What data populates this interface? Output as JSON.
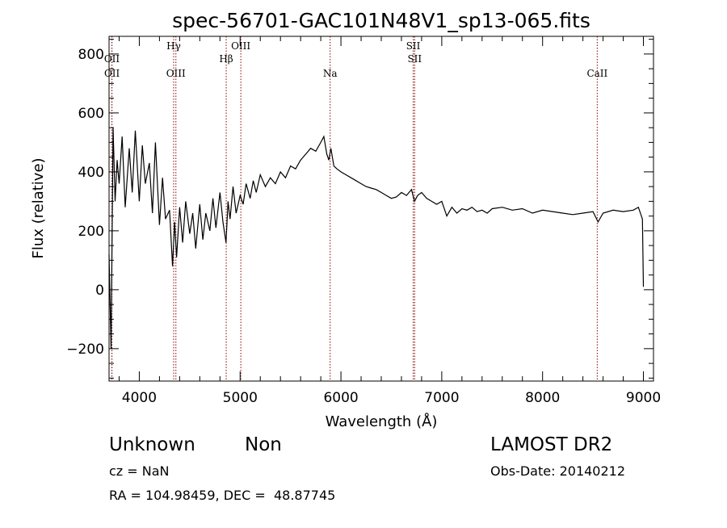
{
  "chart_data": {
    "type": "line",
    "title": "spec-56701-GAC101N48V1_sp13-065.fits",
    "xlabel": "Wavelength (Å)",
    "ylabel": "Flux (relative)",
    "xlim": [
      3700,
      9100
    ],
    "ylim": [
      -310,
      860
    ],
    "xticks": [
      4000,
      5000,
      6000,
      7000,
      8000,
      9000
    ],
    "yticks": [
      -200,
      0,
      200,
      400,
      600,
      800
    ],
    "grid": false,
    "legend": "none",
    "series": [
      {
        "x": [
          3700,
          3720,
          3740,
          3760,
          3780,
          3800,
          3830,
          3860,
          3900,
          3930,
          3960,
          4000,
          4030,
          4060,
          4100,
          4130,
          4160,
          4200,
          4230,
          4260,
          4300,
          4330,
          4350,
          4370,
          4400,
          4430,
          4460,
          4500,
          4530,
          4560,
          4600,
          4630,
          4660,
          4700,
          4730,
          4760,
          4800,
          4830,
          4860,
          4880,
          4900,
          4930,
          4960,
          5000,
          5030,
          5060,
          5100,
          5130,
          5160,
          5200,
          5250,
          5300,
          5350,
          5400,
          5450,
          5500,
          5550,
          5600,
          5650,
          5700,
          5750,
          5800,
          5830,
          5860,
          5880,
          5900,
          5930,
          5960,
          6000,
          6050,
          6100,
          6150,
          6200,
          6250,
          6300,
          6350,
          6400,
          6450,
          6500,
          6550,
          6600,
          6650,
          6700,
          6730,
          6760,
          6800,
          6850,
          6900,
          6950,
          7000,
          7050,
          7100,
          7150,
          7200,
          7250,
          7300,
          7350,
          7400,
          7450,
          7500,
          7600,
          7700,
          7800,
          7900,
          8000,
          8100,
          8200,
          8300,
          8400,
          8500,
          8550,
          8600,
          8700,
          8800,
          8900,
          8950,
          8990,
          9000
        ],
        "y": [
          120,
          -200,
          550,
          300,
          440,
          360,
          520,
          280,
          480,
          330,
          540,
          300,
          490,
          360,
          430,
          260,
          500,
          220,
          380,
          240,
          270,
          80,
          230,
          110,
          280,
          160,
          300,
          190,
          260,
          140,
          290,
          170,
          260,
          200,
          310,
          210,
          330,
          230,
          160,
          300,
          240,
          350,
          260,
          320,
          290,
          360,
          310,
          370,
          330,
          390,
          350,
          380,
          360,
          400,
          380,
          420,
          410,
          440,
          460,
          480,
          470,
          500,
          520,
          460,
          440,
          480,
          420,
          410,
          400,
          390,
          380,
          370,
          360,
          350,
          345,
          340,
          330,
          320,
          310,
          315,
          330,
          320,
          340,
          300,
          320,
          330,
          310,
          300,
          290,
          300,
          250,
          280,
          260,
          275,
          270,
          280,
          265,
          270,
          260,
          275,
          280,
          270,
          275,
          260,
          270,
          265,
          260,
          255,
          260,
          265,
          230,
          260,
          270,
          265,
          270,
          280,
          240,
          10
        ]
      }
    ],
    "annotations": [
      {
        "label": "OII",
        "x": 3728,
        "row": 1
      },
      {
        "label": "OII",
        "x": 3729,
        "row": 2
      },
      {
        "label": "Hγ",
        "x": 4341,
        "row": 0
      },
      {
        "label": "OIII",
        "x": 4363,
        "row": 2
      },
      {
        "label": "Hβ",
        "x": 4862,
        "row": 1
      },
      {
        "label": "OIII",
        "x": 5007,
        "row": 0
      },
      {
        "label": "Na",
        "x": 5893,
        "row": 2
      },
      {
        "label": "SII",
        "x": 6717,
        "row": 0
      },
      {
        "label": "SII",
        "x": 6731,
        "row": 1
      },
      {
        "label": "CaII",
        "x": 8542,
        "row": 2
      }
    ]
  },
  "info": {
    "class_label": "Unknown",
    "subclass_label": "Non",
    "survey": "LAMOST DR2",
    "cz": "cz = NaN",
    "obs_date": "Obs-Date: 20140212",
    "coords": "RA = 104.98459, DEC =  48.87745"
  }
}
